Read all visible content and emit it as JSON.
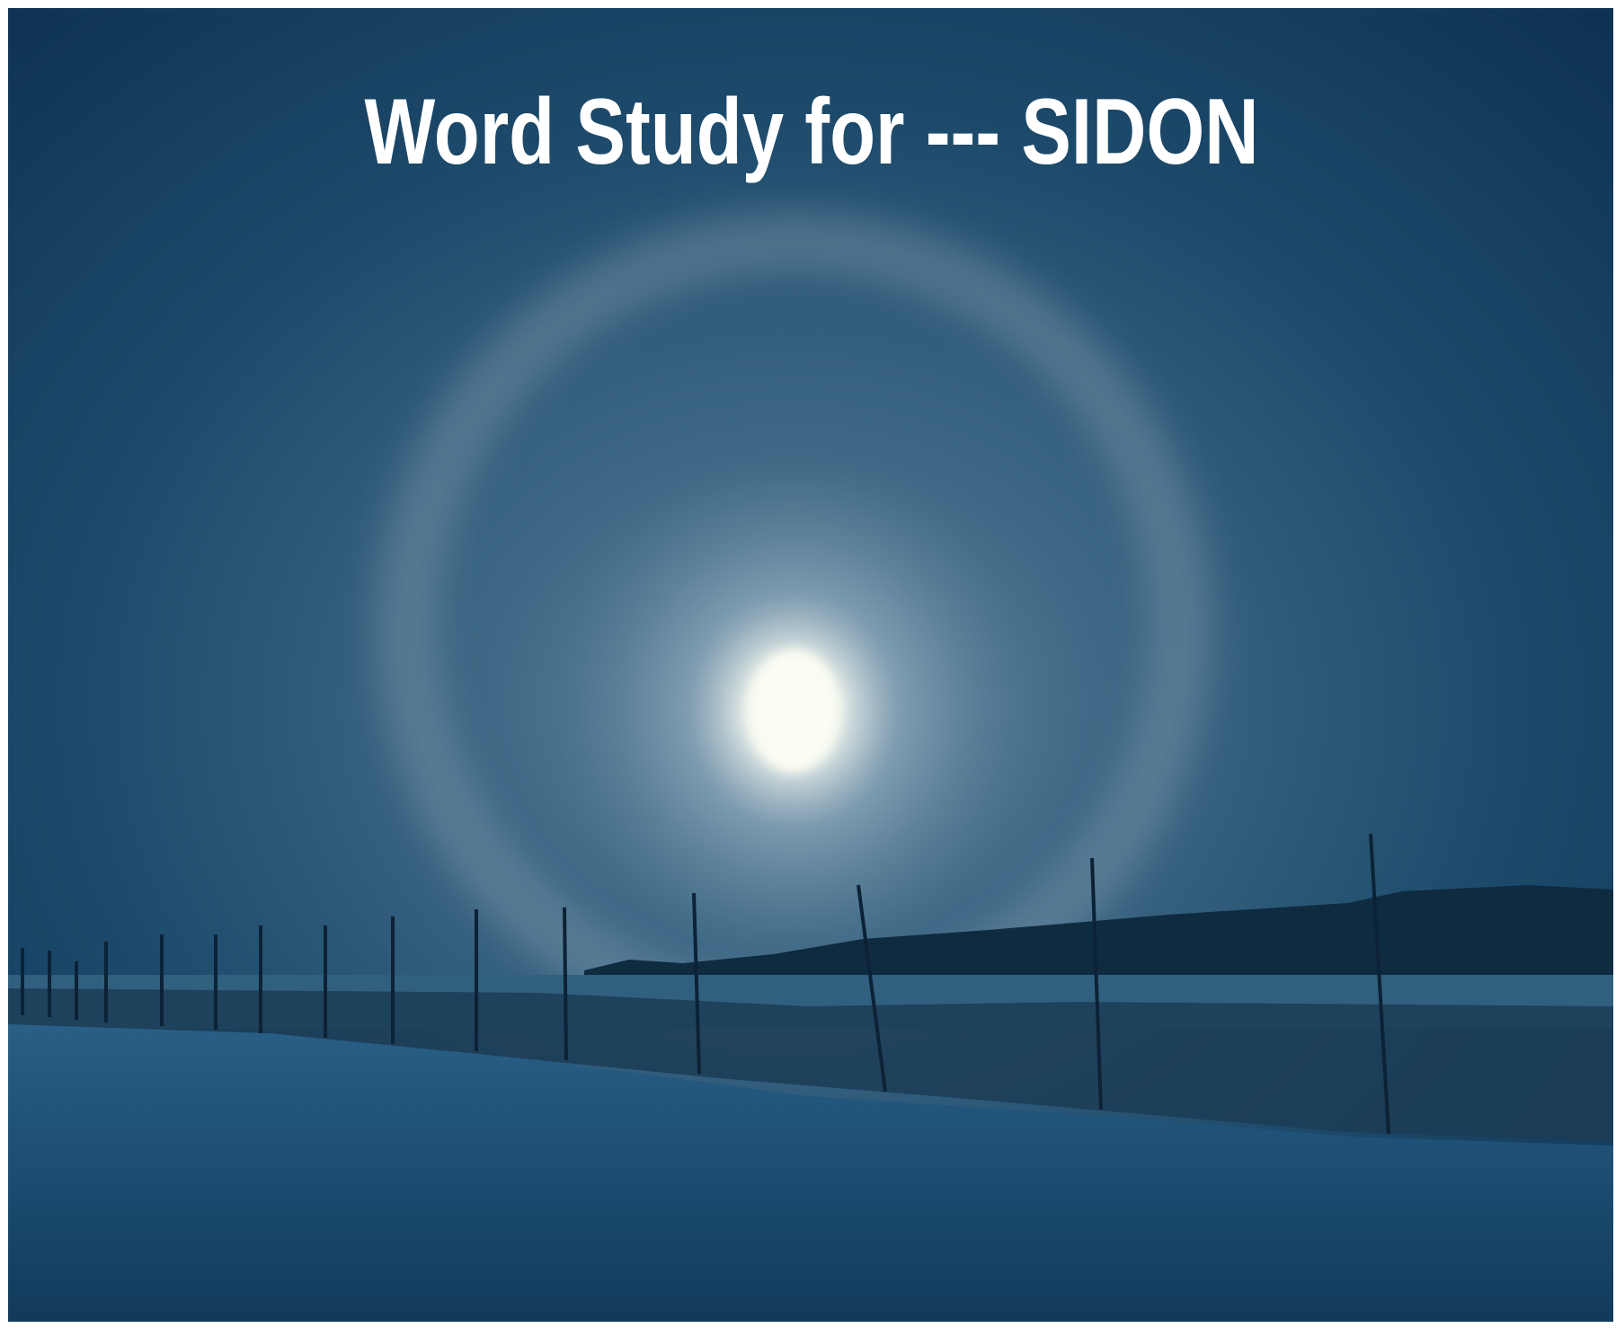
{
  "title": "Word Study for --- SIDON"
}
